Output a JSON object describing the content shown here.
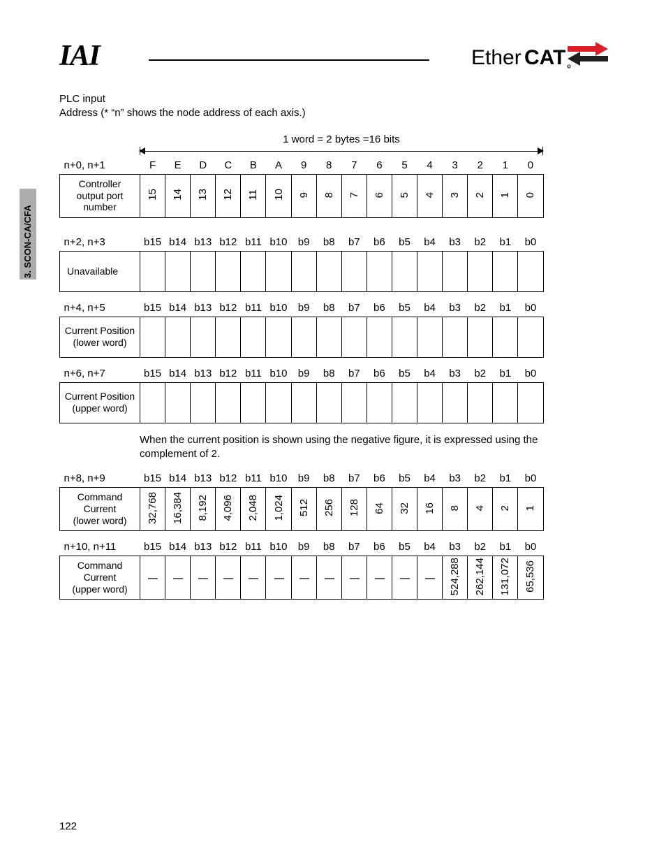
{
  "side_tab": "3. SCON-CA/CFA",
  "logo_iai": "IAI",
  "logo_ethercat_a": "Ether",
  "logo_ethercat_b": "CAT",
  "intro_line1": "PLC input",
  "intro_line2": "Address (* “n” shows the node address of each axis.)",
  "word_caption": "1 word = 2 bytes =16 bits",
  "hex_headers": [
    "F",
    "E",
    "D",
    "C",
    "B",
    "A",
    "9",
    "8",
    "7",
    "6",
    "5",
    "4",
    "3",
    "2",
    "1",
    "0"
  ],
  "bit_headers": [
    "b15",
    "b14",
    "b13",
    "b12",
    "b11",
    "b10",
    "b9",
    "b8",
    "b7",
    "b6",
    "b5",
    "b4",
    "b3",
    "b2",
    "b1",
    "b0"
  ],
  "rows": {
    "r0": {
      "addr": "n+0, n+1",
      "label": "Controller\noutput port\nnumber",
      "cells": [
        "15",
        "14",
        "13",
        "12",
        "11",
        "10",
        "9",
        "8",
        "7",
        "6",
        "5",
        "4",
        "3",
        "2",
        "1",
        "0"
      ]
    },
    "r2": {
      "addr": "n+2, n+3",
      "label": "Unavailable",
      "cells": [
        "",
        "",
        "",
        "",
        "",
        "",
        "",
        "",
        "",
        "",
        "",
        "",
        "",
        "",
        "",
        ""
      ]
    },
    "r4": {
      "addr": "n+4, n+5",
      "label": "Current Position\n(lower word)",
      "cells": [
        "",
        "",
        "",
        "",
        "",
        "",
        "",
        "",
        "",
        "",
        "",
        "",
        "",
        "",
        "",
        ""
      ]
    },
    "r6": {
      "addr": "n+6, n+7",
      "label": "Current Position\n(upper word)",
      "cells": [
        "",
        "",
        "",
        "",
        "",
        "",
        "",
        "",
        "",
        "",
        "",
        "",
        "",
        "",
        "",
        ""
      ]
    },
    "r8": {
      "addr": "n+8, n+9",
      "label": "Command\nCurrent\n(lower word)",
      "cells": [
        "32,768",
        "16,384",
        "8,192",
        "4,096",
        "2,048",
        "1,024",
        "512",
        "256",
        "128",
        "64",
        "32",
        "16",
        "8",
        "4",
        "2",
        "1"
      ]
    },
    "r10": {
      "addr": "n+10, n+11",
      "label": "Command\nCurrent\n(upper word)",
      "cells": [
        "|",
        "|",
        "|",
        "|",
        "|",
        "|",
        "|",
        "|",
        "|",
        "|",
        "|",
        "|",
        "524,288",
        "262,144",
        "131,072",
        "65,536"
      ]
    }
  },
  "note": "When the current position is shown using the negative figure, it is expressed using the complement of 2.",
  "page_number": "122",
  "colors": {
    "tab_bg": "#aeadad",
    "ethercat_red": "#d92027",
    "text": "#000000",
    "bg": "#ffffff"
  },
  "fonts": {
    "body_size_pt": 11,
    "table_size_pt": 10
  }
}
